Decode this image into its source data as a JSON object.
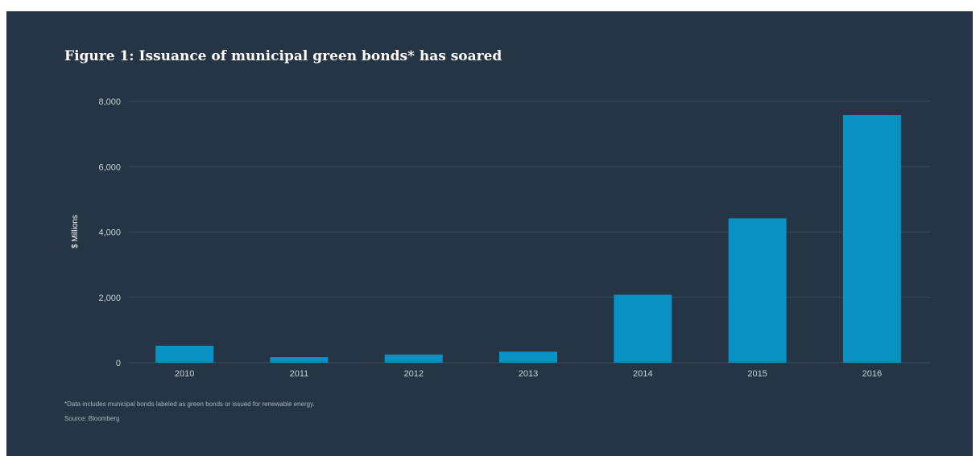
{
  "chart_data": {
    "type": "bar",
    "title": "Figure 1: Issuance of municipal green bonds* has soared",
    "xlabel": "",
    "ylabel": "$ Millions",
    "categories": [
      "2010",
      "2011",
      "2012",
      "2013",
      "2014",
      "2015",
      "2016"
    ],
    "values": [
      520,
      170,
      250,
      340,
      2080,
      4420,
      7580
    ],
    "ylim": [
      0,
      8000
    ],
    "yticks": [
      0,
      2000,
      4000,
      6000,
      8000
    ],
    "ytick_labels": [
      "0",
      "2,000",
      "4,000",
      "6,000",
      "8,000"
    ],
    "grid": true,
    "legend": "none",
    "footnote": "*Data includes municipal bonds labeled as green bonds or issued for renewable energy.",
    "source": "Source: Bloomberg"
  },
  "colors": {
    "background": "#253545",
    "bar": "#0892c4",
    "grid": "#3a4b5c",
    "text": "#ffffff",
    "tick_text": "#c9d1d8"
  }
}
